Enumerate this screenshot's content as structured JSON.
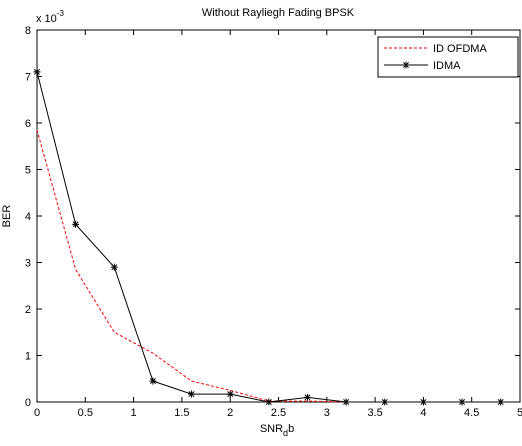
{
  "chart_data": {
    "type": "line",
    "title": "Without Rayliegh Fading BPSK",
    "xlabel": "SNR",
    "xlabel_sub": "d",
    "xlabel_tail": "b",
    "ylabel": "BER",
    "y_multiplier": "x 10",
    "y_multiplier_exp": "-3",
    "x": [
      0,
      0.4,
      0.8,
      1.2,
      1.6,
      2.0,
      2.4,
      2.8,
      3.2,
      3.6,
      4.0,
      4.4,
      4.8
    ],
    "series": [
      {
        "name": "ID OFDMA",
        "color": "#ff0000",
        "values": [
          5.85,
          2.85,
          1.5,
          1.05,
          0.45,
          0.25,
          0.02,
          0.02,
          0,
          0,
          0,
          0,
          0
        ]
      },
      {
        "name": "IDMA",
        "color": "#000000",
        "values": [
          7.1,
          3.82,
          2.9,
          0.45,
          0.17,
          0.17,
          0,
          0.1,
          0,
          0,
          0,
          0,
          0
        ]
      }
    ],
    "xlim": [
      0,
      5
    ],
    "xticks": [
      0,
      0.5,
      1,
      1.5,
      2,
      2.5,
      3,
      3.5,
      4,
      4.5,
      5
    ],
    "ylim": [
      0,
      8
    ],
    "yticks": [
      0,
      1,
      2,
      3,
      4,
      5,
      6,
      7,
      8
    ],
    "grid": false,
    "legend": "top-right"
  }
}
